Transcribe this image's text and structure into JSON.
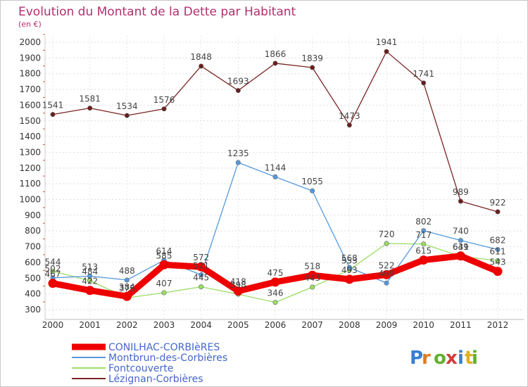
{
  "chart_data": {
    "type": "line",
    "title": "Evolution du Montant de la Dette par Habitant",
    "subtitle": "(en €)",
    "xlabel": "",
    "ylabel": "",
    "categories": [
      "2000",
      "2001",
      "2002",
      "2003",
      "2004",
      "2005",
      "2006",
      "2007",
      "2008",
      "2009",
      "2010",
      "2011",
      "2012"
    ],
    "ylim": [
      300,
      2000
    ],
    "yticks": [
      300,
      400,
      500,
      600,
      700,
      800,
      900,
      1000,
      1100,
      1200,
      1300,
      1400,
      1500,
      1600,
      1700,
      1800,
      1900,
      2000
    ],
    "grid": true,
    "legend_position": "bottom-left",
    "series": [
      {
        "name": "CONILHAC-CORBIèRES",
        "color": "#ee0000",
        "values": [
          467,
          422,
          384,
          585,
          572,
          418,
          475,
          518,
          493,
          522,
          615,
          641,
          543
        ]
      },
      {
        "name": "Montbrun-des-Corbières",
        "color": "#5599dd",
        "values": [
          502,
          513,
          488,
          614,
          521,
          1235,
          1144,
          1055,
          568,
          469,
          802,
          740,
          682
        ]
      },
      {
        "name": "Fontcouverte",
        "color": "#99dd66",
        "values": [
          544,
          484,
          375,
          407,
          445,
          398,
          346,
          443,
          553,
          720,
          717,
          639,
          611
        ]
      },
      {
        "name": "Lézignan-Corbières",
        "color": "#7a2525",
        "values": [
          1541,
          1581,
          1534,
          1576,
          1848,
          1693,
          1866,
          1839,
          1473,
          1941,
          1741,
          989,
          922
        ]
      }
    ]
  },
  "branding": {
    "logo_text": "Proxiti"
  }
}
